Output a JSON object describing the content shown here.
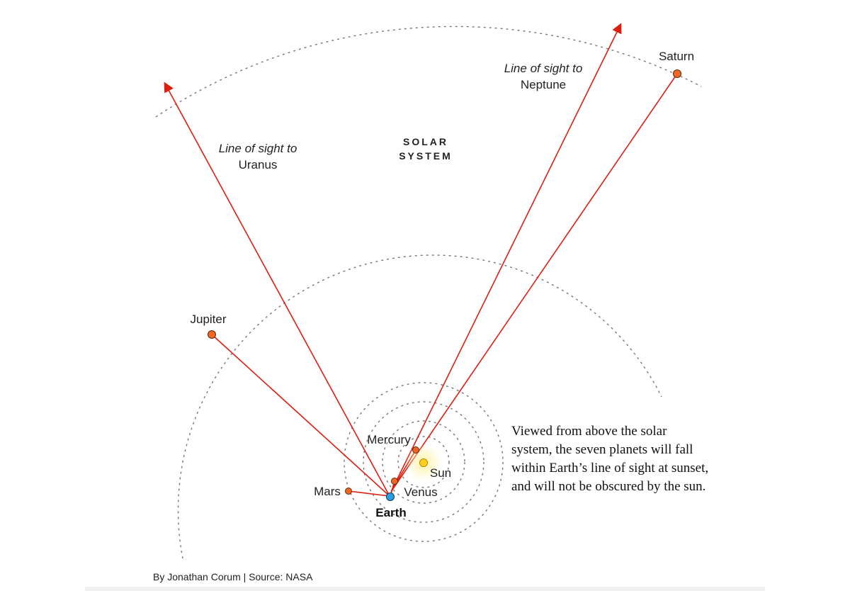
{
  "title": "SOLAR SYSTEM",
  "title_lines": [
    "SOLAR",
    "SYSTEM"
  ],
  "planets": {
    "sun": "Sun",
    "mercury": "Mercury",
    "venus": "Venus",
    "earth": "Earth",
    "mars": "Mars",
    "jupiter": "Jupiter",
    "saturn": "Saturn"
  },
  "sightlines": {
    "uranus": {
      "line1": "Line of sight to",
      "line2": "Uranus"
    },
    "neptune": {
      "line1": "Line of sight to",
      "line2": "Neptune"
    }
  },
  "caption": "Viewed from above the solar system, the seven planets will fall within Earth’s line of sight at sunset, and will not be obscured by the sun.",
  "credit": "By Jonathan Corum | Source: NASA",
  "colors": {
    "line": "#dd1e0f",
    "planet": "#f26522",
    "earth": "#2a9fe0",
    "sun": "#ffd21f",
    "orbit": "#777777"
  }
}
